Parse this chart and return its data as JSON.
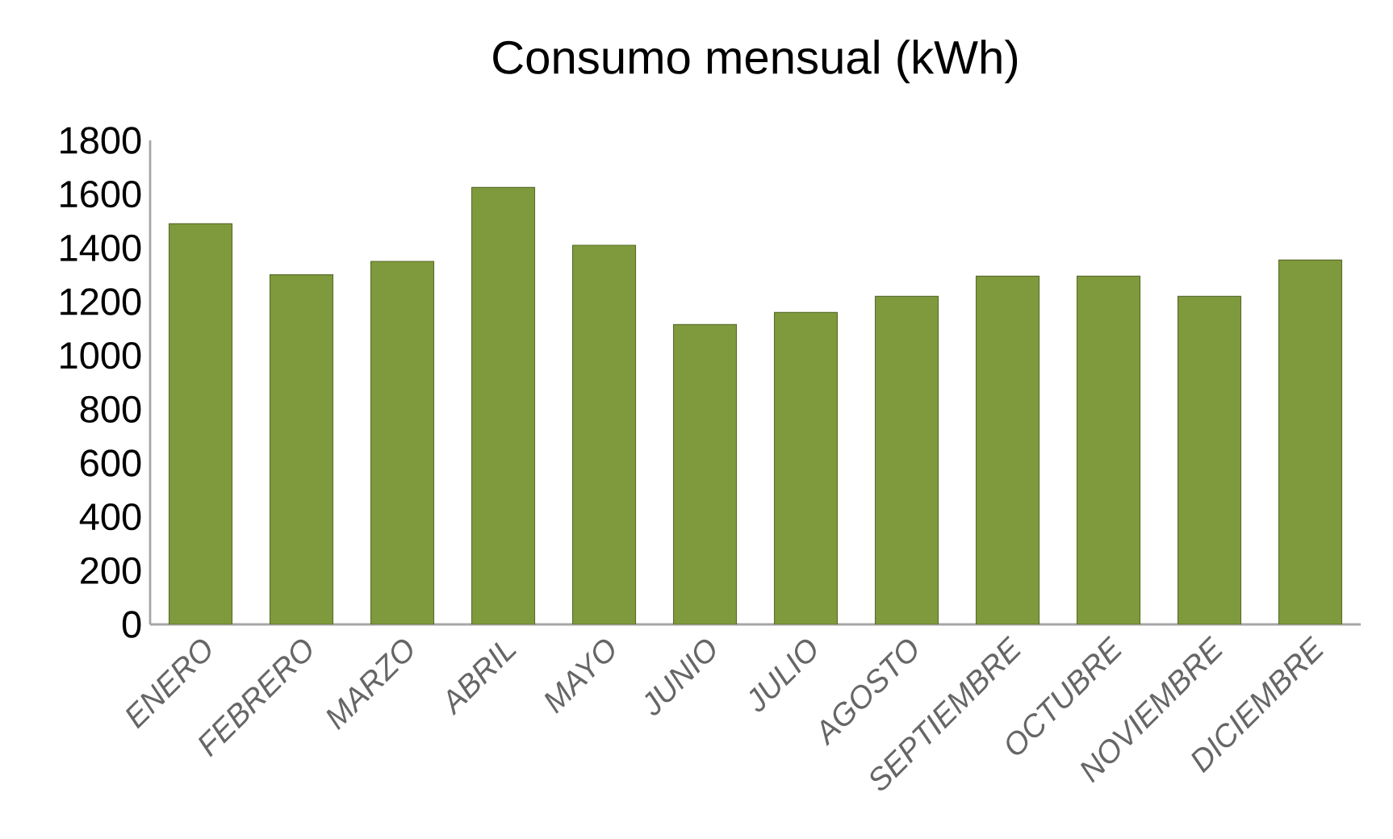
{
  "chart_data": {
    "type": "bar",
    "title": "Consumo mensual (kWh)",
    "categories": [
      "ENERO",
      "FEBRERO",
      "MARZO",
      "ABRIL",
      "MAYO",
      "JUNIO",
      "JULIO",
      "AGOSTO",
      "SEPTIEMBRE",
      "OCTUBRE",
      "NOVIEMBRE",
      "DICIEMBRE"
    ],
    "values": [
      1490,
      1300,
      1350,
      1625,
      1410,
      1115,
      1160,
      1220,
      1295,
      1295,
      1220,
      1355
    ],
    "color": "#7f9a3c",
    "ylim": [
      0,
      1800
    ],
    "yticks": [
      0,
      200,
      400,
      600,
      800,
      1000,
      1200,
      1400,
      1600,
      1800
    ],
    "grid": false
  }
}
